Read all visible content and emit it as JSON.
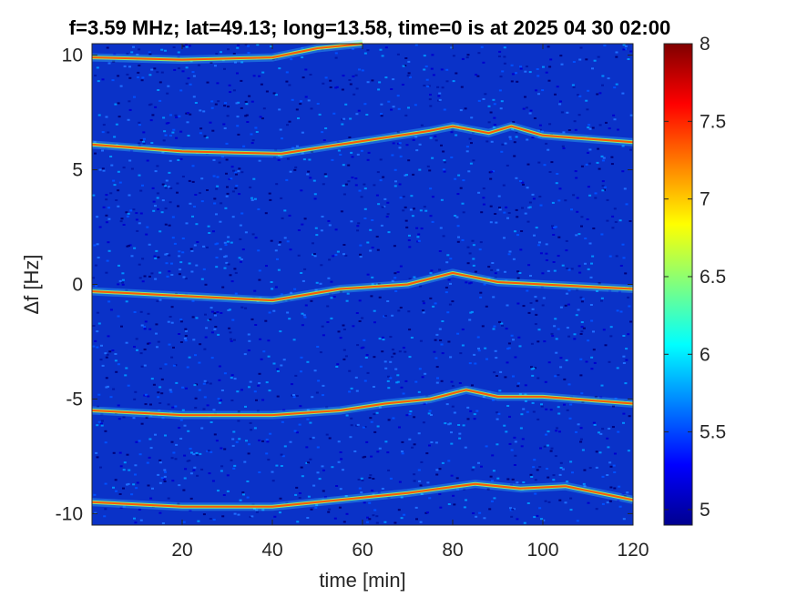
{
  "chart_data": {
    "type": "heatmap",
    "title": "f=3.59 MHz;  lat=49.13; long=13.58, time=0 is at 2025 04 30 02:00",
    "xlabel": "time [min]",
    "ylabel": "Δf [Hz]",
    "xlim": [
      0,
      120
    ],
    "ylim": [
      -10.5,
      10.5
    ],
    "x_ticks": [
      "20",
      "40",
      "60",
      "80",
      "100",
      "120"
    ],
    "y_ticks": [
      "10",
      "5",
      "0",
      "-5",
      "-10"
    ],
    "colorbar": {
      "colormap": "jet",
      "range": [
        4.9,
        8.0
      ],
      "ticks": [
        "8",
        "7.5",
        "7",
        "6.5",
        "6",
        "5.5",
        "5"
      ]
    },
    "traces": [
      {
        "name": "",
        "points": [
          [
            0,
            9.9
          ],
          [
            20,
            9.8
          ],
          [
            40,
            9.9
          ],
          [
            50,
            10.3
          ],
          [
            60,
            10.5
          ]
        ]
      },
      {
        "name": "",
        "points": [
          [
            0,
            6.1
          ],
          [
            20,
            5.8
          ],
          [
            42,
            5.7
          ],
          [
            55,
            6.1
          ],
          [
            65,
            6.4
          ],
          [
            75,
            6.7
          ],
          [
            80,
            6.9
          ],
          [
            88,
            6.6
          ],
          [
            93,
            6.9
          ],
          [
            100,
            6.5
          ],
          [
            120,
            6.2
          ]
        ]
      },
      {
        "name": "",
        "points": [
          [
            0,
            -0.3
          ],
          [
            20,
            -0.5
          ],
          [
            40,
            -0.7
          ],
          [
            55,
            -0.2
          ],
          [
            70,
            0.0
          ],
          [
            80,
            0.5
          ],
          [
            90,
            0.1
          ],
          [
            100,
            0.0
          ],
          [
            120,
            -0.2
          ]
        ]
      },
      {
        "name": "",
        "points": [
          [
            0,
            -5.5
          ],
          [
            20,
            -5.7
          ],
          [
            40,
            -5.7
          ],
          [
            55,
            -5.5
          ],
          [
            65,
            -5.2
          ],
          [
            75,
            -5.0
          ],
          [
            83,
            -4.6
          ],
          [
            90,
            -4.9
          ],
          [
            100,
            -4.9
          ],
          [
            120,
            -5.2
          ]
        ]
      },
      {
        "name": "",
        "points": [
          [
            0,
            -9.5
          ],
          [
            20,
            -9.7
          ],
          [
            40,
            -9.7
          ],
          [
            55,
            -9.4
          ],
          [
            70,
            -9.1
          ],
          [
            85,
            -8.7
          ],
          [
            95,
            -8.9
          ],
          [
            105,
            -8.8
          ],
          [
            120,
            -9.4
          ]
        ]
      }
    ],
    "grid": false
  }
}
